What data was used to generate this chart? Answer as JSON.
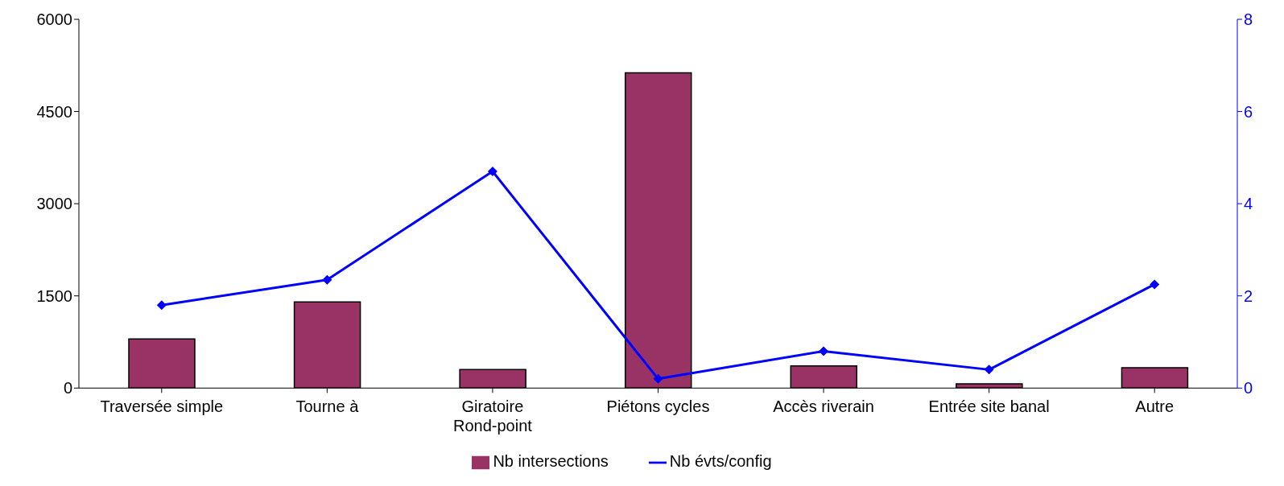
{
  "chart_data": {
    "type": "bar",
    "categories": [
      "Traversée simple",
      "Tourne à",
      "Giratoire Rond-point",
      "Piétons cycles",
      "Accès riverain",
      "Entrée site banal",
      "Autre"
    ],
    "series": [
      {
        "name": "Nb intersections",
        "color": "#993366",
        "values": [
          800,
          1400,
          300,
          5130,
          360,
          70,
          330
        ]
      },
      {
        "name": "Nb évts/config",
        "type": "line",
        "axis": "y2",
        "color": "#0000ff",
        "marker": "diamond",
        "values": [
          1.8,
          2.35,
          4.7,
          0.2,
          0.8,
          0.4,
          2.25
        ]
      }
    ],
    "ylim": [
      0,
      6000
    ],
    "yticks": [
      0,
      1500,
      3000,
      4500,
      6000
    ],
    "y2lim": [
      0,
      8
    ],
    "y2ticks": [
      0,
      2,
      4,
      6,
      8
    ],
    "grid": false,
    "legend": "bottom"
  }
}
